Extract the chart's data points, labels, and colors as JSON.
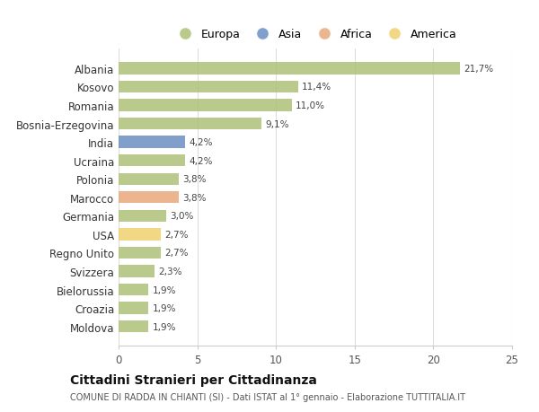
{
  "categories": [
    "Albania",
    "Kosovo",
    "Romania",
    "Bosnia-Erzegovina",
    "India",
    "Ucraina",
    "Polonia",
    "Marocco",
    "Germania",
    "USA",
    "Regno Unito",
    "Svizzera",
    "Bielorussia",
    "Croazia",
    "Moldova"
  ],
  "values": [
    21.7,
    11.4,
    11.0,
    9.1,
    4.2,
    4.2,
    3.8,
    3.8,
    3.0,
    2.7,
    2.7,
    2.3,
    1.9,
    1.9,
    1.9
  ],
  "labels": [
    "21,7%",
    "11,4%",
    "11,0%",
    "9,1%",
    "4,2%",
    "4,2%",
    "3,8%",
    "3,8%",
    "3,0%",
    "2,7%",
    "2,7%",
    "2,3%",
    "1,9%",
    "1,9%",
    "1,9%"
  ],
  "colors": [
    "#adc178",
    "#adc178",
    "#adc178",
    "#adc178",
    "#6a8ec2",
    "#adc178",
    "#adc178",
    "#e8a87c",
    "#adc178",
    "#f0d070",
    "#adc178",
    "#adc178",
    "#adc178",
    "#adc178",
    "#adc178"
  ],
  "legend_labels": [
    "Europa",
    "Asia",
    "Africa",
    "America"
  ],
  "legend_colors": [
    "#adc178",
    "#6a8ec2",
    "#e8a87c",
    "#f0d070"
  ],
  "title": "Cittadini Stranieri per Cittadinanza",
  "subtitle": "COMUNE DI RADDA IN CHIANTI (SI) - Dati ISTAT al 1° gennaio - Elaborazione TUTTITALIA.IT",
  "xlim": [
    0,
    25
  ],
  "xticks": [
    0,
    5,
    10,
    15,
    20,
    25
  ],
  "background_color": "#ffffff",
  "bar_alpha": 0.85,
  "grid_color": "#dddddd"
}
